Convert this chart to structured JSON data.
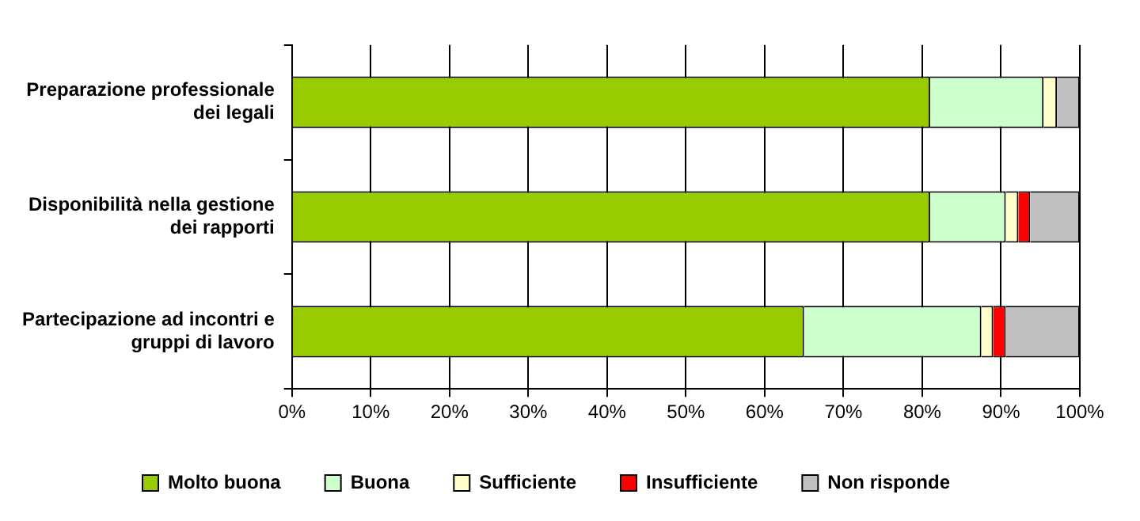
{
  "chart_data": {
    "type": "bar",
    "orientation": "horizontal",
    "stacked": true,
    "categories": [
      "Preparazione professionale dei legali",
      "Disponibilità nella gestione dei rapporti",
      "Partecipazione ad incontri e gruppi di lavoro"
    ],
    "series": [
      {
        "name": "Molto buona",
        "color": "#99cc00",
        "values": [
          81,
          81,
          65
        ]
      },
      {
        "name": "Buona",
        "color": "#ccffcc",
        "values": [
          14.4,
          9.6,
          22.5
        ]
      },
      {
        "name": "Sufficiente",
        "color": "#ffffcc",
        "values": [
          1.7,
          1.6,
          1.5
        ]
      },
      {
        "name": "Insufficiente",
        "color": "#ff0000",
        "values": [
          0,
          1.5,
          1.6
        ]
      },
      {
        "name": "Non risponde",
        "color": "#c0c0c0",
        "values": [
          2.9,
          6.3,
          9.4
        ]
      }
    ],
    "xlim": [
      0,
      100
    ],
    "xticks": [
      {
        "value": 0,
        "label": "0%"
      },
      {
        "value": 10,
        "label": "10%"
      },
      {
        "value": 20,
        "label": "20%"
      },
      {
        "value": 30,
        "label": "30%"
      },
      {
        "value": 40,
        "label": "40%"
      },
      {
        "value": 50,
        "label": "50%"
      },
      {
        "value": 60,
        "label": "60%"
      },
      {
        "value": 70,
        "label": "70%"
      },
      {
        "value": 80,
        "label": "80%"
      },
      {
        "value": 90,
        "label": "90%"
      },
      {
        "value": 100,
        "label": "100%"
      }
    ],
    "grid": "x",
    "legend": "bottom"
  }
}
